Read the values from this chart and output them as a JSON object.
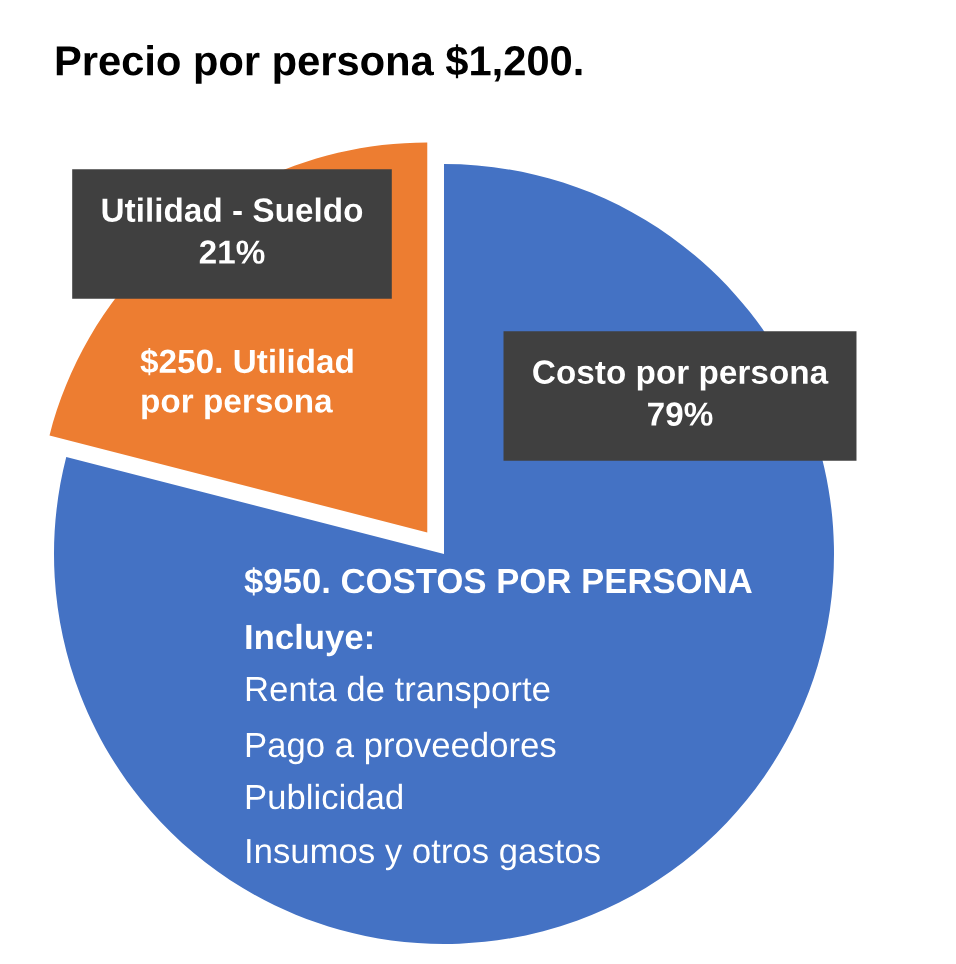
{
  "chart_data": {
    "type": "pie",
    "title": "Precio por persona $1,200.",
    "categories": [
      "Costo por persona",
      "Utilidad - Sueldo"
    ],
    "values": [
      79,
      21
    ],
    "colors": [
      "#4472c4",
      "#ed7d31"
    ],
    "value_labels": [
      "79%",
      "21%"
    ],
    "annotations": [
      "$250. Utilidad\npor persona",
      "$950. COSTOS POR PERSONA",
      "Incluye:",
      "Renta de transporte",
      "Pago a proveedores",
      "Publicidad",
      "Insumos y otros gastos"
    ]
  }
}
